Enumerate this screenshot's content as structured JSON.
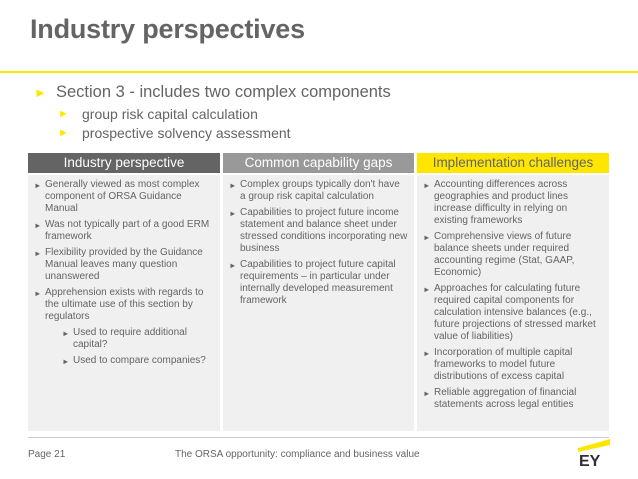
{
  "title": "Industry perspectives",
  "section": {
    "heading": "Section 3 - includes two complex components",
    "subitems": [
      "group risk capital calculation",
      "prospective solvency assessment"
    ]
  },
  "columns": [
    {
      "header": "Industry perspective",
      "items": [
        "Generally viewed as most complex component of ORSA Guidance Manual",
        "Was not typically part of a good ERM framework",
        "Flexibility provided by the Guidance Manual leaves many question unanswered",
        "Apprehension exists with regards to the ultimate use of this section by regulators"
      ],
      "subitems": [
        "Used to require additional capital?",
        "Used to compare companies?"
      ]
    },
    {
      "header": "Common capability gaps",
      "items": [
        "Complex groups typically don't have a group risk capital calculation",
        "Capabilities to project future income statement and balance sheet under stressed conditions incorporating new business",
        "Capabilities to project future capital requirements – in particular under internally developed measurement framework"
      ]
    },
    {
      "header": "Implementation challenges",
      "items": [
        "Accounting differences across geographies and product lines increase difficulty in relying on existing frameworks",
        "Comprehensive views of future balance sheets under required accounting regime (Stat, GAAP, Economic)",
        "Approaches for calculating future required capital components for calculation intensive balances (e.g., future projections of stressed market value of liabilities)",
        "Incorporation of multiple capital frameworks to model future distributions of excess capital",
        "Reliable aggregation of financial statements across legal entities"
      ]
    }
  ],
  "footer": {
    "page": "Page 21",
    "center": "The ORSA opportunity: compliance and business value",
    "logo": "EY"
  },
  "colors": {
    "accent": "#ffe600",
    "dark_header": "#646464",
    "mid_header": "#999999",
    "panel": "#f0f0f0"
  }
}
